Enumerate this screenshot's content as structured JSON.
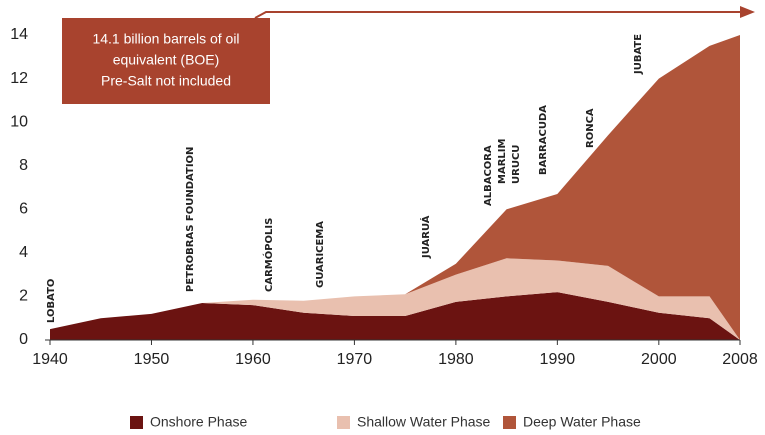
{
  "chart_data": {
    "type": "stacked-area",
    "x": [
      1940,
      1945,
      1950,
      1955,
      1960,
      1965,
      1970,
      1975,
      1980,
      1985,
      1990,
      1995,
      2000,
      2005,
      2008
    ],
    "series": [
      {
        "name": "Onshore Phase",
        "color": "#6b1311",
        "values": [
          0.5,
          1.0,
          1.2,
          1.7,
          1.6,
          1.25,
          1.1,
          1.1,
          1.75,
          2.0,
          2.2,
          1.75,
          1.25,
          1.0,
          0
        ]
      },
      {
        "name": "Shallow Water Phase",
        "color": "#e9c0af",
        "values": [
          0,
          0,
          0,
          0,
          0.25,
          0.55,
          0.9,
          1.0,
          1.25,
          1.75,
          1.45,
          1.65,
          0.75,
          1.0,
          0
        ]
      },
      {
        "name": "Deep Water Phase",
        "color": "#b0553a",
        "values": [
          0,
          0,
          0,
          0,
          0,
          0,
          0,
          0,
          0.5,
          2.25,
          3.05,
          6.0,
          10.0,
          11.5,
          14.0
        ]
      }
    ],
    "xlim": [
      1940,
      2008
    ],
    "xticks": [
      1940,
      1950,
      1960,
      1970,
      1980,
      1990,
      2000,
      2008
    ],
    "ylim": [
      0,
      14
    ],
    "yticks": [
      0,
      2,
      4,
      6,
      8,
      10,
      12,
      14
    ],
    "annotations": [
      "LOBATO",
      "PETROBRAS FOUNDATION",
      "CARMÓPOLIS",
      "GUARICEMA",
      "JUARUÁ",
      "ALBACORA",
      "MARLIM",
      "URUCU",
      "BARRACUDA",
      "RONCA",
      "JUBATE"
    ],
    "note": [
      "14.1 billion barrels of oil",
      "equivalent (BOE)",
      "Pre-Salt not included"
    ]
  }
}
